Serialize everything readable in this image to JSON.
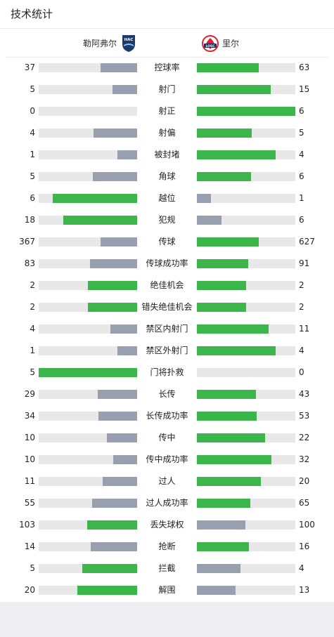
{
  "header": {
    "title": "技术统计"
  },
  "teams": {
    "home": "勒阿弗尔",
    "away": "里尔",
    "home_logo_text": "HAC",
    "away_logo_text": "LOSC"
  },
  "colors": {
    "win": "#3cb54a",
    "lose": "#98a0b0",
    "track": "#e8e8e8"
  },
  "stats": [
    {
      "name": "控球率",
      "home": "37",
      "away": "63",
      "home_frac": 0.37,
      "away_frac": 0.63
    },
    {
      "name": "射门",
      "home": "5",
      "away": "15",
      "home_frac": 0.25,
      "away_frac": 0.75
    },
    {
      "name": "射正",
      "home": "0",
      "away": "6",
      "home_frac": 0.0,
      "away_frac": 1.0
    },
    {
      "name": "射偏",
      "home": "4",
      "away": "5",
      "home_frac": 0.44,
      "away_frac": 0.56
    },
    {
      "name": "被封堵",
      "home": "1",
      "away": "4",
      "home_frac": 0.2,
      "away_frac": 0.8
    },
    {
      "name": "角球",
      "home": "5",
      "away": "6",
      "home_frac": 0.45,
      "away_frac": 0.55
    },
    {
      "name": "越位",
      "home": "6",
      "away": "1",
      "home_frac": 0.86,
      "away_frac": 0.14
    },
    {
      "name": "犯规",
      "home": "18",
      "away": "6",
      "home_frac": 0.75,
      "away_frac": 0.25
    },
    {
      "name": "传球",
      "home": "367",
      "away": "627",
      "home_frac": 0.37,
      "away_frac": 0.63
    },
    {
      "name": "传球成功率",
      "home": "83",
      "away": "91",
      "home_frac": 0.48,
      "away_frac": 0.52
    },
    {
      "name": "绝佳机会",
      "home": "2",
      "away": "2",
      "home_frac": 0.5,
      "away_frac": 0.5
    },
    {
      "name": "错失绝佳机会",
      "home": "2",
      "away": "2",
      "home_frac": 0.5,
      "away_frac": 0.5
    },
    {
      "name": "禁区内射门",
      "home": "4",
      "away": "11",
      "home_frac": 0.27,
      "away_frac": 0.73
    },
    {
      "name": "禁区外射门",
      "home": "1",
      "away": "4",
      "home_frac": 0.2,
      "away_frac": 0.8
    },
    {
      "name": "门将扑救",
      "home": "5",
      "away": "0",
      "home_frac": 1.0,
      "away_frac": 0.0
    },
    {
      "name": "长传",
      "home": "29",
      "away": "43",
      "home_frac": 0.4,
      "away_frac": 0.6
    },
    {
      "name": "长传成功率",
      "home": "34",
      "away": "53",
      "home_frac": 0.39,
      "away_frac": 0.61
    },
    {
      "name": "传中",
      "home": "10",
      "away": "22",
      "home_frac": 0.31,
      "away_frac": 0.69
    },
    {
      "name": "传中成功率",
      "home": "10",
      "away": "32",
      "home_frac": 0.24,
      "away_frac": 0.76
    },
    {
      "name": "过人",
      "home": "11",
      "away": "20",
      "home_frac": 0.35,
      "away_frac": 0.65
    },
    {
      "name": "过人成功率",
      "home": "55",
      "away": "65",
      "home_frac": 0.46,
      "away_frac": 0.54
    },
    {
      "name": "丢失球权",
      "home": "103",
      "away": "100",
      "home_frac": 0.51,
      "away_frac": 0.49
    },
    {
      "name": "抢断",
      "home": "14",
      "away": "16",
      "home_frac": 0.47,
      "away_frac": 0.53
    },
    {
      "name": "拦截",
      "home": "5",
      "away": "4",
      "home_frac": 0.56,
      "away_frac": 0.44
    },
    {
      "name": "解围",
      "home": "20",
      "away": "13",
      "home_frac": 0.61,
      "away_frac": 0.39
    }
  ]
}
